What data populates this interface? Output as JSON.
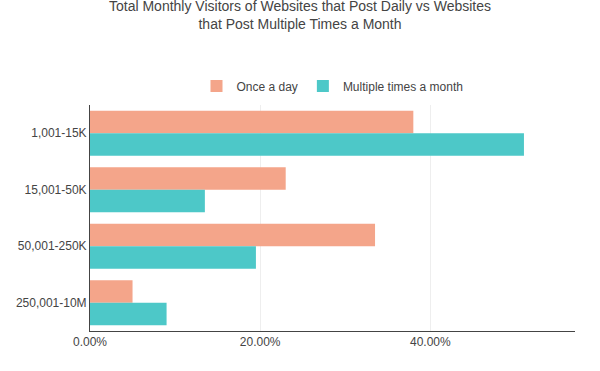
{
  "chart_data": {
    "type": "bar",
    "orientation": "horizontal",
    "title": "Total Monthly Visitors of Websites that Post Daily vs Websites\nthat Post Multiple Times a Month",
    "categories": [
      "1,001-15K",
      "15,001-50K",
      "50,001-250K",
      "250,001-10M"
    ],
    "series": [
      {
        "name": "Once a day",
        "color": "#F4A58A",
        "values": [
          0.38,
          0.23,
          0.335,
          0.05
        ]
      },
      {
        "name": "Multiple times a month",
        "color": "#4DC8C8",
        "values": [
          0.51,
          0.135,
          0.195,
          0.09
        ]
      }
    ],
    "xlim": [
      0,
      0.57
    ],
    "xticks": [
      {
        "value": 0.0,
        "label": "0.00%"
      },
      {
        "value": 0.2,
        "label": "20.00%"
      },
      {
        "value": 0.4,
        "label": "40.00%"
      }
    ],
    "grid": true,
    "legend": "top"
  }
}
